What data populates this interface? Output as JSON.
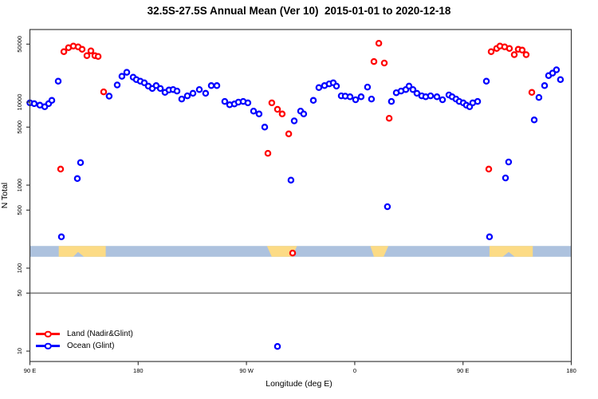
{
  "title": "32.5S-27.5S Annual Mean (Ver 10)  2015-01-01 to 2020-12-18",
  "chart_data": {
    "type": "scatter",
    "title": "32.5S-27.5S Annual Mean (Ver 10)  2015-01-01 to 2020-12-18",
    "xlabel": "Longitude (deg E)",
    "ylabel": "N Total",
    "x_axis": {
      "units": "deg E",
      "range_axis_degrees": [
        0,
        450
      ],
      "ticks": [
        {
          "pos": 0,
          "label": "90 E"
        },
        {
          "pos": 90,
          "label": "180"
        },
        {
          "pos": 180,
          "label": "90 W"
        },
        {
          "pos": 270,
          "label": "0"
        },
        {
          "pos": 360,
          "label": "90 E"
        },
        {
          "pos": 450,
          "label": "180"
        }
      ]
    },
    "y_axis": {
      "scale": "log",
      "range": [
        7.5,
        75000
      ],
      "ticks": [
        {
          "value": 50000,
          "label": "50000"
        },
        {
          "value": 10000,
          "label": "10000"
        },
        {
          "value": 5000,
          "label": "5000"
        },
        {
          "value": 1000,
          "label": "1000"
        },
        {
          "value": 500,
          "label": "500"
        },
        {
          "value": 100,
          "label": "100"
        },
        {
          "value": 50,
          "label": "50"
        },
        {
          "value": 10,
          "label": "10"
        }
      ]
    },
    "reference_line_value": 50,
    "reference_line_color": "#7f7f7f",
    "series": [
      {
        "name": "Land (Nadir&Glint)",
        "color": "#FF0000",
        "points": [
          [
            25.5,
            1560
          ],
          [
            28.2,
            40600
          ],
          [
            32.1,
            45300
          ],
          [
            36.1,
            47400
          ],
          [
            40.1,
            46400
          ],
          [
            43.4,
            43300
          ],
          [
            47.4,
            36400
          ],
          [
            50.7,
            41500
          ],
          [
            54,
            36400
          ],
          [
            56.7,
            35600
          ],
          [
            61.3,
            13300
          ],
          [
            197.8,
            2420
          ],
          [
            201.1,
            9800
          ],
          [
            205.8,
            8200
          ],
          [
            209.7,
            7200
          ],
          [
            215.1,
            4150
          ],
          [
            218.4,
            152
          ],
          [
            286,
            30900
          ],
          [
            290,
            51200
          ],
          [
            294.6,
            29600
          ],
          [
            298.6,
            6400
          ],
          [
            381.4,
            1560
          ],
          [
            383.4,
            40600
          ],
          [
            388,
            44400
          ],
          [
            390.7,
            47400
          ],
          [
            394.6,
            46400
          ],
          [
            398.6,
            44400
          ],
          [
            402.6,
            37300
          ],
          [
            405.9,
            43300
          ],
          [
            409.2,
            42400
          ],
          [
            412.5,
            37300
          ],
          [
            417.2,
            13100
          ]
        ]
      },
      {
        "name": "Ocean (Glint)",
        "color": "#0000FF",
        "points": [
          [
            0,
            9800
          ],
          [
            3.6,
            9600
          ],
          [
            8.3,
            9200
          ],
          [
            12.3,
            8800
          ],
          [
            15.6,
            9600
          ],
          [
            18.2,
            10500
          ],
          [
            23.5,
            17900
          ],
          [
            26.2,
            238
          ],
          [
            39.4,
            1200
          ],
          [
            42.1,
            1870
          ],
          [
            65.9,
            11800
          ],
          [
            72.6,
            16100
          ],
          [
            76.5,
            20500
          ],
          [
            80.5,
            22900
          ],
          [
            85.8,
            20000
          ],
          [
            88.5,
            18700
          ],
          [
            91.8,
            17900
          ],
          [
            95.1,
            17100
          ],
          [
            98.4,
            15600
          ],
          [
            101.7,
            14600
          ],
          [
            105,
            15800
          ],
          [
            108.4,
            14600
          ],
          [
            112.3,
            13100
          ],
          [
            115.6,
            14000
          ],
          [
            119,
            14200
          ],
          [
            122.3,
            13600
          ],
          [
            126.2,
            10900
          ],
          [
            130.9,
            11900
          ],
          [
            135.5,
            12800
          ],
          [
            140.8,
            14200
          ],
          [
            146.1,
            12800
          ],
          [
            150.8,
            15800
          ],
          [
            155.4,
            15800
          ],
          [
            162,
            10200
          ],
          [
            166,
            9300
          ],
          [
            170,
            9500
          ],
          [
            173.3,
            10000
          ],
          [
            177.3,
            10200
          ],
          [
            181.2,
            9800
          ],
          [
            185.9,
            7800
          ],
          [
            190.5,
            7200
          ],
          [
            195.2,
            5000
          ],
          [
            205.8,
            11.4
          ],
          [
            217,
            1150
          ],
          [
            219.7,
            5950
          ],
          [
            225,
            7800
          ],
          [
            227.6,
            7200
          ],
          [
            235.6,
            10500
          ],
          [
            240.2,
            15000
          ],
          [
            244.9,
            15800
          ],
          [
            248.8,
            16600
          ],
          [
            252.2,
            17100
          ],
          [
            254.8,
            15600
          ],
          [
            258.8,
            11900
          ],
          [
            262.1,
            11800
          ],
          [
            266.1,
            11600
          ],
          [
            270.7,
            10700
          ],
          [
            275.3,
            11600
          ],
          [
            280.6,
            15200
          ],
          [
            283.9,
            10900
          ],
          [
            297.2,
            550
          ],
          [
            300.5,
            10200
          ],
          [
            304.5,
            13000
          ],
          [
            308.5,
            13600
          ],
          [
            312.5,
            14200
          ],
          [
            315.1,
            15600
          ],
          [
            318.4,
            14200
          ],
          [
            321.7,
            12800
          ],
          [
            325.7,
            11900
          ],
          [
            329,
            11600
          ],
          [
            333,
            11900
          ],
          [
            338.3,
            11600
          ],
          [
            343,
            10700
          ],
          [
            348.3,
            12200
          ],
          [
            350.9,
            11600
          ],
          [
            354.2,
            10900
          ],
          [
            356.9,
            10200
          ],
          [
            360.2,
            9800
          ],
          [
            362.8,
            9200
          ],
          [
            365.5,
            8800
          ],
          [
            368.1,
            9800
          ],
          [
            372.1,
            10200
          ],
          [
            379.4,
            17900
          ],
          [
            382,
            238
          ],
          [
            395.3,
            1220
          ],
          [
            397.9,
            1900
          ],
          [
            419.2,
            6100
          ],
          [
            423.1,
            11400
          ],
          [
            427.8,
            15800
          ],
          [
            431.1,
            20900
          ],
          [
            434.4,
            22400
          ],
          [
            437.7,
            24500
          ],
          [
            441,
            18700
          ]
        ]
      }
    ],
    "map_strip": {
      "value_top": 185,
      "value_bottom": 137,
      "ocean_color": "#ADC2DE",
      "land_color": "#FCDB85",
      "land_patches": [
        {
          "polygon": [
            [
              24,
              0
            ],
            [
              63,
              0
            ],
            [
              63,
              1
            ],
            [
              45,
              1
            ],
            [
              40,
              0.55
            ],
            [
              36,
              1
            ],
            [
              24,
              1
            ]
          ]
        },
        {
          "polygon": [
            [
              197,
              0
            ],
            [
              222,
              0
            ],
            [
              218,
              1
            ],
            [
              201,
              1
            ]
          ]
        },
        {
          "polygon": [
            [
              283,
              0
            ],
            [
              298,
              0
            ],
            [
              294,
              1
            ],
            [
              286,
              1
            ]
          ]
        },
        {
          "polygon": [
            [
              382,
              0
            ],
            [
              418,
              0
            ],
            [
              418,
              1
            ],
            [
              403,
              1
            ],
            [
              398,
              0.55
            ],
            [
              393,
              1
            ],
            [
              382,
              1
            ]
          ]
        }
      ]
    },
    "legend": {
      "position": "bottom-left",
      "entries": [
        "Land (Nadir&Glint)",
        "Ocean (Glint)"
      ]
    }
  }
}
